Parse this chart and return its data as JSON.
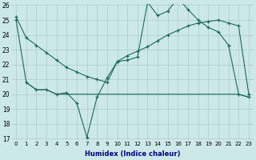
{
  "xlabel": "Humidex (Indice chaleur)",
  "bg_color": "#cde8e8",
  "grid_color": "#b0c8c8",
  "line_color": "#1a6b5a",
  "xmin": -0.5,
  "xmax": 23.5,
  "ymin": 17,
  "ymax": 26,
  "yticks": [
    17,
    18,
    19,
    20,
    21,
    22,
    23,
    24,
    25,
    26
  ],
  "xticks": [
    0,
    1,
    2,
    3,
    4,
    5,
    6,
    7,
    8,
    9,
    10,
    11,
    12,
    13,
    14,
    15,
    16,
    17,
    18,
    19,
    20,
    21,
    22,
    23
  ],
  "line1_x": [
    0,
    1,
    2,
    3,
    4,
    5,
    6,
    7,
    8,
    9,
    10,
    11,
    12,
    13,
    14,
    15,
    16,
    17,
    18,
    19,
    20,
    21,
    22,
    23
  ],
  "line1_y": [
    25.2,
    23.8,
    23.3,
    22.8,
    22.3,
    21.8,
    21.5,
    21.2,
    21.0,
    20.8,
    22.2,
    22.6,
    22.9,
    23.2,
    23.6,
    24.0,
    24.3,
    24.6,
    24.8,
    24.9,
    25.0,
    24.8,
    24.6,
    20.0
  ],
  "line2_x": [
    0,
    1,
    2,
    3,
    4,
    5,
    6,
    7,
    8,
    9,
    10,
    11,
    12,
    13,
    14,
    15,
    16,
    17,
    18,
    19,
    20,
    21,
    22,
    23
  ],
  "line2_y": [
    25.0,
    20.8,
    20.3,
    20.3,
    20.0,
    20.1,
    19.4,
    17.1,
    19.8,
    21.1,
    22.2,
    22.3,
    22.5,
    26.2,
    25.3,
    25.6,
    26.5,
    25.7,
    25.0,
    24.5,
    24.2,
    23.3,
    20.0,
    19.8
  ],
  "line3_x": [
    1,
    2,
    3,
    4,
    5,
    6,
    7,
    8,
    9,
    10,
    11,
    12,
    13,
    14,
    15,
    16,
    17,
    18,
    19,
    20,
    21,
    22,
    23
  ],
  "line3_y": [
    20.8,
    20.3,
    20.3,
    20.0,
    20.0,
    20.0,
    20.0,
    20.0,
    20.0,
    20.0,
    20.0,
    20.0,
    20.0,
    20.0,
    20.0,
    20.0,
    20.0,
    20.0,
    20.0,
    20.0,
    20.0,
    20.0,
    19.8
  ]
}
